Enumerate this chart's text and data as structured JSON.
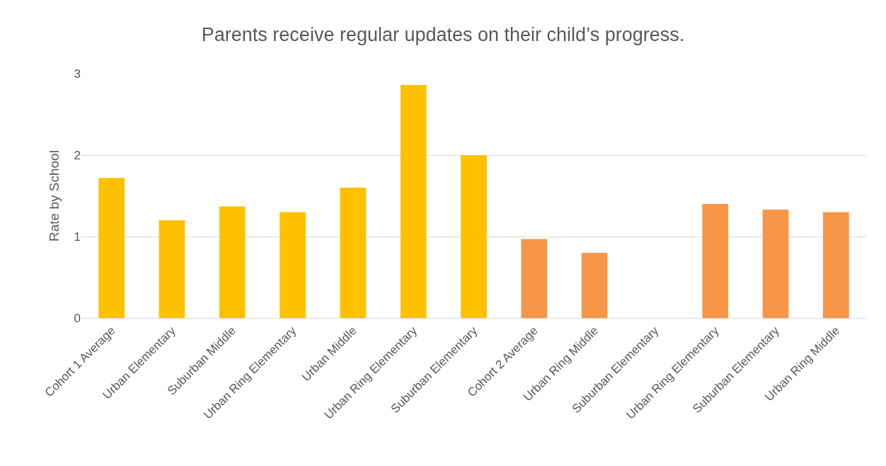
{
  "chart_data": {
    "type": "bar",
    "title": "Parents receive regular updates on their child’s progress.",
    "ylabel": "Rate by School",
    "categories": [
      "Cohort 1 Average",
      "Urban Elementary",
      "Suburban Middle",
      "Urban Ring Elementary",
      "Urban Middle",
      "Urban Ring Elementary",
      "Suburban Elementary",
      "Cohort 2 Average",
      "Urban Ring Middle",
      "Suburban Elementary",
      "Urban Ring Elementary",
      "Suburban Elementary",
      "Urban Ring Middle"
    ],
    "values": [
      1.72,
      1.2,
      1.37,
      1.3,
      1.6,
      2.86,
      2.0,
      0.97,
      0.8,
      null,
      1.4,
      1.33,
      1.3
    ],
    "colors": [
      "#ffc000",
      "#ffc000",
      "#ffc000",
      "#ffc000",
      "#ffc000",
      "#ffc000",
      "#ffc000",
      "#f79646",
      "#f79646",
      "#f79646",
      "#f79646",
      "#f79646",
      "#f79646"
    ],
    "ylim": [
      0,
      3
    ],
    "yticks": [
      0,
      1,
      2,
      3
    ],
    "grid": "y"
  }
}
